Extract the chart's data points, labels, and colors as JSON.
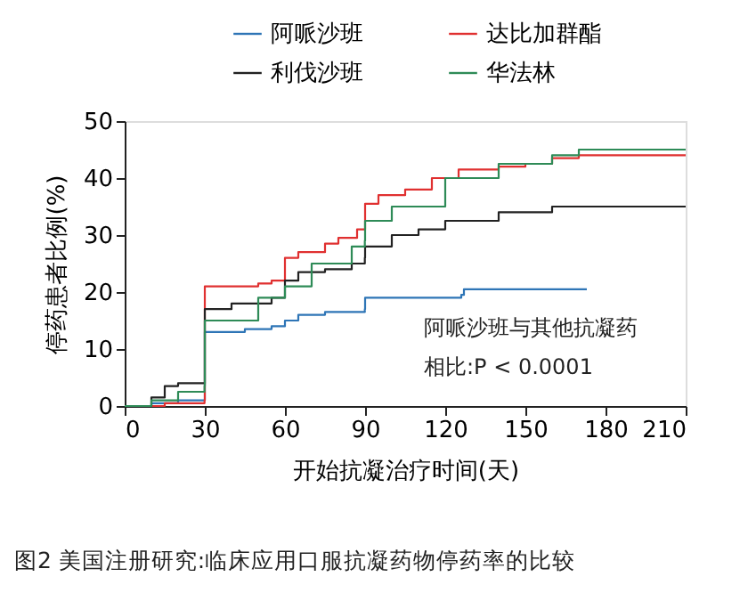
{
  "chart_data": {
    "type": "step",
    "title": null,
    "xlabel": "开始抗凝治疗时间(天)",
    "ylabel": "停药患者比例(%)",
    "xlim": [
      0,
      210
    ],
    "xticks": [
      0,
      30,
      60,
      90,
      120,
      150,
      180,
      210
    ],
    "ylim": [
      0,
      50
    ],
    "yticks": [
      0,
      10,
      20,
      30,
      40,
      50
    ],
    "grid": false,
    "legend": "top",
    "line_style": "solid",
    "marker": "none",
    "annotations": [
      "阿哌沙班与其他抗凝药",
      "相比:P < 0.0001",
      "图2 美国注册研究:临床应用口服抗凝药物停药率的比较"
    ],
    "series": [
      {
        "name": "阿哌沙班",
        "color": "#2e75b6",
        "x": [
          0,
          10,
          20,
          30,
          45,
          55,
          60,
          65,
          75,
          89.9,
          90,
          126,
          127,
          173
        ],
        "values": [
          0,
          0.5,
          1,
          13,
          13.5,
          14,
          15,
          16,
          16.5,
          17,
          19,
          19.5,
          20.5,
          20.5
        ]
      },
      {
        "name": "达比加群酯",
        "color": "#e03030",
        "x": [
          0,
          15,
          29.9,
          30,
          50,
          55,
          60,
          65,
          75,
          80,
          87,
          90,
          95,
          105,
          115,
          125,
          140,
          150,
          160,
          170,
          210
        ],
        "values": [
          0,
          0.5,
          1,
          21,
          21.5,
          22,
          26,
          27,
          28.5,
          29.5,
          31,
          35.5,
          37,
          38,
          40,
          41.5,
          42,
          42.5,
          43.5,
          44,
          44
        ]
      },
      {
        "name": "利伐沙班",
        "color": "#222222",
        "x": [
          0,
          10,
          15,
          20,
          29.9,
          30,
          40,
          55,
          60,
          65,
          75,
          85,
          89.9,
          90,
          100,
          110,
          120,
          140,
          160,
          210
        ],
        "values": [
          0,
          1.5,
          3.5,
          4,
          4,
          17,
          18,
          19,
          22,
          23.5,
          24,
          25,
          26,
          28,
          30,
          31,
          32.5,
          34,
          35,
          35
        ]
      },
      {
        "name": "华法林",
        "color": "#2e8b57",
        "x": [
          0,
          10,
          20,
          29.9,
          30,
          50,
          60,
          70,
          85,
          89.9,
          90,
          100,
          120,
          140,
          160,
          170,
          210
        ],
        "values": [
          0,
          1,
          2.5,
          3.5,
          15,
          19,
          21,
          25,
          28,
          29,
          32.5,
          35,
          40,
          42.5,
          44,
          45,
          45
        ]
      }
    ]
  }
}
